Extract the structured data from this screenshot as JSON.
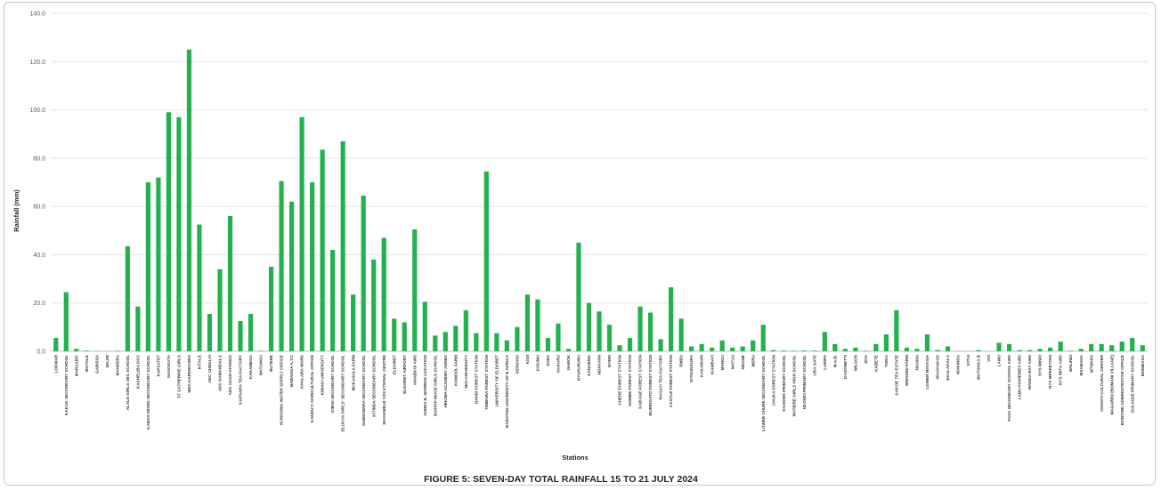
{
  "chart_data": {
    "type": "bar",
    "title": "FIGURE 5: SEVEN-DAY TOTAL RAINFALL 15 TO 21 JULY 2024",
    "xlabel": "Stations",
    "ylabel": "Rainfall (mm)",
    "ylim": [
      0,
      140
    ],
    "yticks": [
      "0.0",
      "20.0",
      "40.0",
      "60.0",
      "80.0",
      "100.0",
      "120.0",
      "140.0"
    ],
    "grid": true,
    "bar_color": "#22b14c",
    "categories": [
      "LODWAR",
      "KAKUK SECONDARY SCHOOL",
      "MARSABIT",
      "MOYALE",
      "GARISSA",
      "WAJIR",
      "MANDERA",
      "ALALE GIRLS SEC SCHOOL",
      "KACHELIBA DCC",
      "KABOS MIXED SECONDARY SCHOOL",
      "KAPSATET",
      "NASOKUTA",
      "ST CATHERINE GIRLS",
      "WEA KAPENGURIA",
      "KITALE",
      "ADC CHEKLAI",
      "ADC NAMANDALA",
      "ADC OLNG'ATONGO",
      "KAPSARA TEA FACTORY",
      "KAKAMEGA",
      "MATUNGU",
      "BUTERE",
      "BUNGOMA WATER SUPPLY OFFICE",
      "MABANGA A.T.C",
      "KHALABA WARD",
      "KANDUYI AGRICULTURAL OFFICE",
      "KIMAKI UNIVERSITY",
      "KIBISI SECONDARY SCHOOL",
      "ELUUYA GIRLS' SECONDARY SCHOOL",
      "MUKASULA FARM",
      "NABIKWARA SECONDARY SCHOOL",
      "KITINDA SECONDARY SCHOOL",
      "MACHWELE VOCATIONAL CENTRE",
      "ELDORET",
      "ELDORET AIRPORT",
      "AINABKOI AWS",
      "ANNEX B. WARENG LOCATION",
      "BISHOP MUGE GIRLS SCHOOL",
      "HEKIMA ACADEMY ANNEX",
      "KOMOOL FARM",
      "MOI UNIVERSITY",
      "NANDI FOREST STATION",
      "TIMBORA FOREST STATION",
      "UNIVERSITY OF ELDORET",
      "BARATON UNIVERSITY OF E.AFRICA",
      "KERICHO",
      "KISII",
      "KISUMU",
      "SUBA",
      "NAKURU",
      "NAROK",
      "NYAHURURU",
      "KANGEMA",
      "NDAKAINI",
      "NYERI",
      "CHEHE FOREST STATION",
      "HOMBE FOREST STATION",
      "KABAGE FOREST STATION",
      "MURINGATO FOREST STATION",
      "RAGATI TEA FACTORY",
      "CASTLE FOREST STATION",
      "EMBU",
      "GITHUNGURA",
      "KAKAMARI",
      "KIAMBAYI",
      "MANGU",
      "MATUU",
      "NDUNE",
      "MERU",
      "LOWER CHURE SECONDARY SCHOOL",
      "CHUKA FOREST STATION",
      "KAANWA PRIMARY SCHOOL",
      "MATIERE GIRLS HIGH SCHOOL",
      "NKONDI PRIMARY SCHOOL",
      "URA GATE",
      "LARIPA",
      "M.A.B.",
      "DAGORETTI",
      "WILSON",
      "JKIA",
      "KABETE",
      "THIKA",
      "GAKOE TEA ESTATE",
      "MWANINI FARM",
      "NGONG",
      "LOWER MATASIA",
      "MACHAKOS",
      "EKALAKALA",
      "MAKINDU",
      "KITUI",
      "MUTONGA B",
      "VOI",
      "LAMU",
      "FAZA SECONDARY SCHOOL AWS",
      "LAMU FISHERIES AWS",
      "MANDA BAY AWS",
      "NYS MINDI",
      "NYS MPEKETONI",
      "NYS WITU AWS",
      "MALINDI",
      "MSABAHA",
      "MTWAPA",
      "CHONYI CULTURAL CENTER",
      "MAGARINI (BOMANI VILLAGE)",
      "BONGWE ADMINISTRATIVE OFFICE",
      "GULANZE PRIMARY SCHOOL",
      "MOMBASA"
    ],
    "values": [
      5.5,
      24.5,
      1.0,
      0.3,
      0.1,
      0.1,
      0.2,
      43.5,
      18.5,
      70.0,
      72.0,
      99.0,
      97.0,
      125.0,
      52.5,
      15.5,
      34.0,
      56.0,
      12.5,
      15.5,
      0.2,
      35.0,
      70.5,
      62.0,
      97.0,
      70.0,
      83.5,
      42.0,
      87.0,
      23.5,
      64.5,
      38.0,
      47.0,
      13.5,
      12.0,
      50.5,
      20.5,
      6.5,
      8.0,
      10.5,
      17.0,
      7.5,
      74.5,
      7.5,
      4.5,
      10.0,
      23.5,
      21.5,
      5.5,
      11.5,
      1.0,
      45.0,
      20.0,
      16.5,
      11.0,
      2.5,
      5.5,
      18.5,
      16.0,
      5.0,
      26.5,
      13.5,
      2.0,
      3.0,
      1.5,
      4.5,
      1.5,
      2.0,
      4.5,
      11.0,
      0.5,
      0.3,
      0.2,
      0.3,
      0.3,
      8.0,
      3.0,
      1.0,
      1.5,
      0.2,
      3.0,
      7.0,
      17.0,
      1.5,
      1.0,
      7.0,
      0.5,
      2.0,
      0.1,
      0.1,
      0.5,
      0.1,
      3.5,
      3.0,
      0.5,
      0.5,
      1.0,
      1.5,
      4.0,
      0.2,
      1.0,
      3.0,
      3.0,
      2.5,
      4.0,
      5.5,
      2.5
    ]
  }
}
